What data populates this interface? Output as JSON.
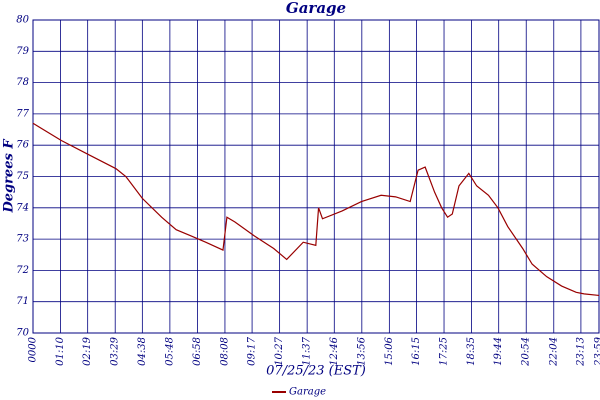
{
  "chart_data": {
    "type": "line",
    "title": "Garage",
    "y_label": "Degrees F",
    "x_label": "07/25/23 (EST)",
    "xlim": [
      0,
      1439
    ],
    "ylim": [
      70,
      80
    ],
    "yticks": [
      70,
      71,
      72,
      73,
      74,
      75,
      76,
      77,
      78,
      79,
      80
    ],
    "xticks": [
      {
        "value": 0,
        "label": "0000"
      },
      {
        "value": 70,
        "label": "01:10"
      },
      {
        "value": 139,
        "label": "02:19"
      },
      {
        "value": 209,
        "label": "03:29"
      },
      {
        "value": 278,
        "label": "04:38"
      },
      {
        "value": 348,
        "label": "05:48"
      },
      {
        "value": 418,
        "label": "06:58"
      },
      {
        "value": 488,
        "label": "08:08"
      },
      {
        "value": 557,
        "label": "09:17"
      },
      {
        "value": 627,
        "label": "10:27"
      },
      {
        "value": 697,
        "label": "11:37"
      },
      {
        "value": 766,
        "label": "12:46"
      },
      {
        "value": 836,
        "label": "13:56"
      },
      {
        "value": 906,
        "label": "15:06"
      },
      {
        "value": 975,
        "label": "16:15"
      },
      {
        "value": 1045,
        "label": "17:25"
      },
      {
        "value": 1115,
        "label": "18:35"
      },
      {
        "value": 1184,
        "label": "19:44"
      },
      {
        "value": 1254,
        "label": "20:54"
      },
      {
        "value": 1324,
        "label": "22:04"
      },
      {
        "value": 1393,
        "label": "23:13"
      },
      {
        "value": 1439,
        "label": "23:59"
      }
    ],
    "grid": true,
    "x": [
      0,
      72,
      141,
      211,
      236,
      278,
      327,
      364,
      402,
      439,
      483,
      493,
      513,
      563,
      612,
      645,
      687,
      719,
      726,
      736,
      786,
      835,
      885,
      922,
      959,
      979,
      997,
      1021,
      1039,
      1054,
      1066,
      1083,
      1108,
      1128,
      1158,
      1182,
      1207,
      1245,
      1269,
      1306,
      1344,
      1381,
      1401,
      1439
    ],
    "series": [
      {
        "name": "Garage",
        "color": "#990000",
        "values": [
          76.7,
          76.15,
          75.7,
          75.25,
          75.0,
          74.3,
          73.7,
          73.3,
          73.1,
          72.9,
          72.65,
          73.7,
          73.55,
          73.1,
          72.7,
          72.35,
          72.9,
          72.8,
          74.0,
          73.65,
          73.9,
          74.2,
          74.4,
          74.35,
          74.2,
          75.2,
          75.3,
          74.5,
          74.0,
          73.7,
          73.8,
          74.7,
          75.1,
          74.7,
          74.4,
          74.0,
          73.4,
          72.7,
          72.2,
          71.8,
          71.5,
          71.3,
          71.25,
          71.2
        ]
      }
    ]
  }
}
